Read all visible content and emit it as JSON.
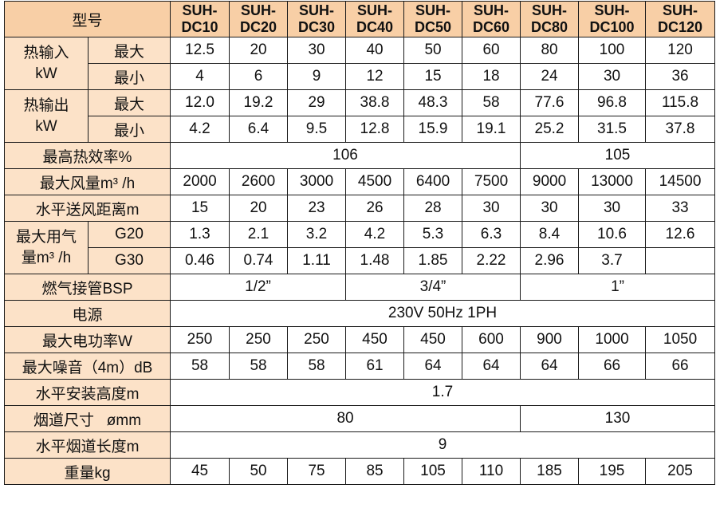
{
  "header": {
    "label": "型号",
    "models": [
      [
        "SUH-",
        "DC10"
      ],
      [
        "SUH-",
        "DC20"
      ],
      [
        "SUH-",
        "DC30"
      ],
      [
        "SUH-",
        "DC40"
      ],
      [
        "SUH-",
        "DC50"
      ],
      [
        "SUH-",
        "DC60"
      ],
      [
        "SUH-",
        "DC80"
      ],
      [
        "SUH-",
        "DC100"
      ],
      [
        "SUH-",
        "DC120"
      ]
    ]
  },
  "heat_input": {
    "label_line1": "热输入",
    "label_line2": "kW",
    "max_label": "最大",
    "min_label": "最小",
    "max": [
      "12.5",
      "20",
      "30",
      "40",
      "50",
      "60",
      "80",
      "100",
      "120"
    ],
    "min": [
      "4",
      "6",
      "9",
      "12",
      "15",
      "18",
      "24",
      "30",
      "36"
    ]
  },
  "heat_output": {
    "label_line1": "热输出",
    "label_line2": "kW",
    "max_label": "最大",
    "min_label": "最小",
    "max": [
      "12.0",
      "19.2",
      "29",
      "38.8",
      "48.3",
      "58",
      "77.6",
      "96.8",
      "115.8"
    ],
    "min": [
      "4.2",
      "6.4",
      "9.5",
      "12.8",
      "15.9",
      "19.1",
      "25.2",
      "31.5",
      "37.8"
    ]
  },
  "efficiency": {
    "label": "最高热效率%",
    "group1": "106",
    "group2": "105"
  },
  "airflow": {
    "label": "最大风量m³ /h",
    "values": [
      "2000",
      "2600",
      "3000",
      "4500",
      "6400",
      "7500",
      "9000",
      "13000",
      "14500"
    ]
  },
  "throw": {
    "label": "水平送风距离m",
    "values": [
      "15",
      "20",
      "23",
      "26",
      "28",
      "30",
      "30",
      "30",
      "33"
    ]
  },
  "gas": {
    "label_line1": "最大用气",
    "label_line2": "量m³ /h",
    "g20_label": "G20",
    "g30_label": "G30",
    "g20": [
      "1.3",
      "2.1",
      "3.2",
      "4.2",
      "5.3",
      "6.3",
      "8.4",
      "10.6",
      "12.6"
    ],
    "g30": [
      "0.46",
      "0.74",
      "1.11",
      "1.48",
      "1.85",
      "2.22",
      "2.96",
      "3.7",
      ""
    ]
  },
  "gas_pipe": {
    "label": "燃气接管BSP",
    "group1": "1/2”",
    "group2": "3/4”",
    "group3": "1”"
  },
  "power_supply": {
    "label": "电源",
    "value": "230V 50Hz 1PH"
  },
  "power": {
    "label": "最大电功率W",
    "values": [
      "250",
      "250",
      "250",
      "450",
      "450",
      "600",
      "900",
      "1000",
      "1050"
    ]
  },
  "noise": {
    "label": "最大噪音（4m）dB",
    "values": [
      "58",
      "58",
      "58",
      "61",
      "64",
      "64",
      "64",
      "66",
      "66"
    ]
  },
  "install_height": {
    "label": "水平安装高度m",
    "value": "1.7"
  },
  "flue_size": {
    "label": "烟道尺寸   ømm",
    "group1": "80",
    "group2": "130"
  },
  "flue_length": {
    "label": "水平烟道长度m",
    "value": "9"
  },
  "weight": {
    "label": "重量kg",
    "values": [
      "45",
      "50",
      "75",
      "85",
      "105",
      "110",
      "185",
      "195",
      "205"
    ]
  },
  "colors": {
    "header_bg": "#f8cfa6",
    "label_bg": "#fce2c8",
    "cell_bg": "#ffffff",
    "border": "#1a1a1a"
  }
}
